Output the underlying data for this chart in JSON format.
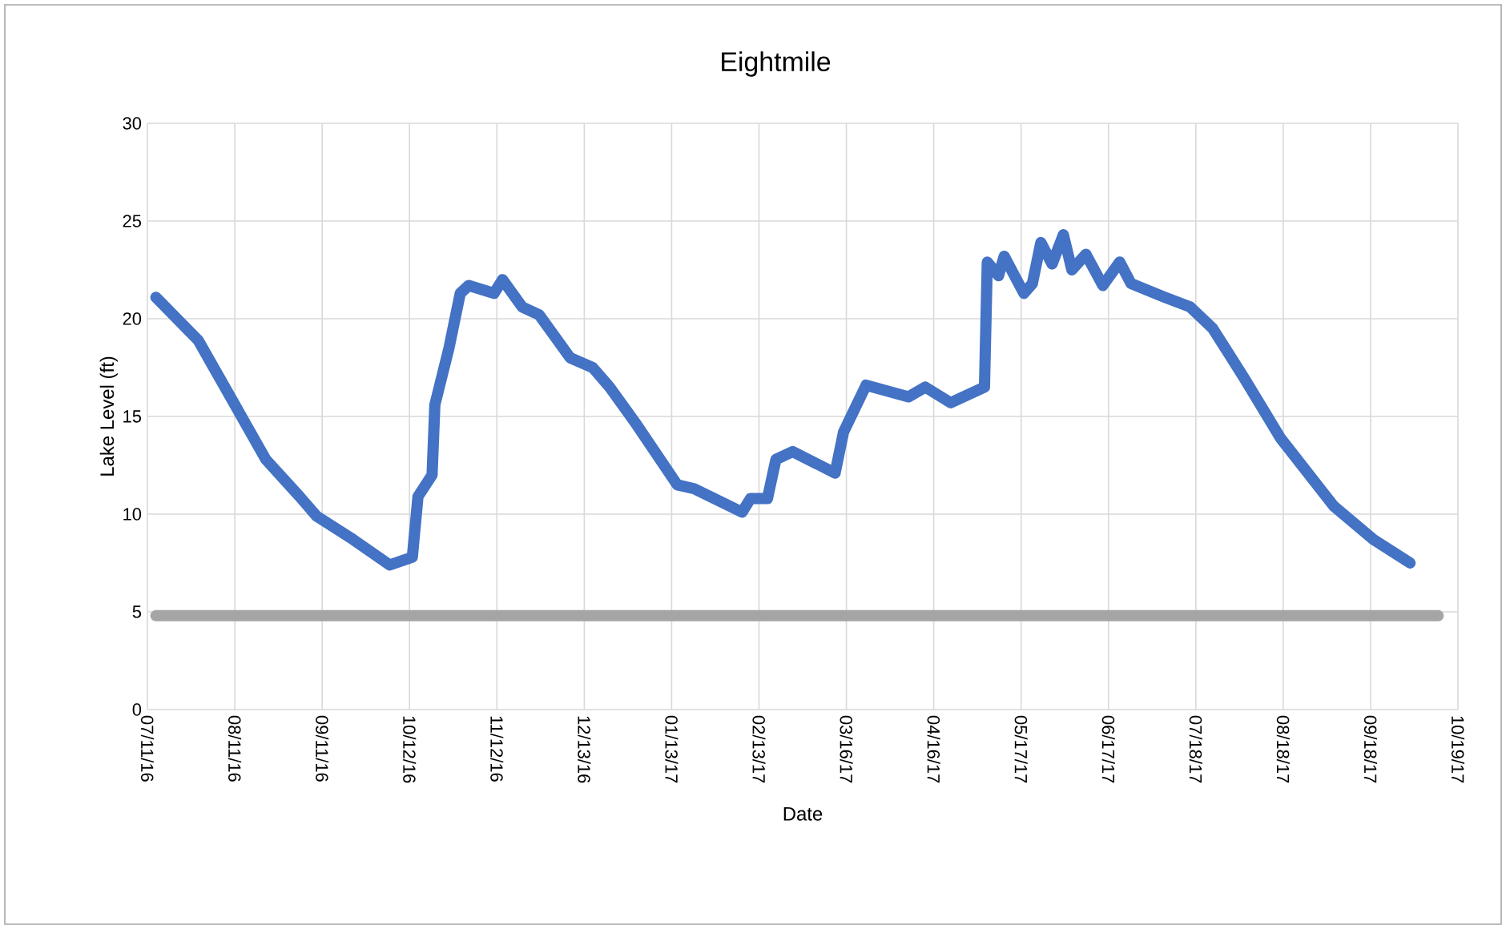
{
  "chart_data": {
    "type": "line",
    "title": "Eightmile",
    "xlabel": "Date",
    "ylabel": "Lake Level (ft)",
    "xlim": [
      "2016-07-11",
      "2017-10-19"
    ],
    "xticks": [
      {
        "value": "2016-07-11",
        "label": "07/11/16"
      },
      {
        "value": "2016-08-11",
        "label": "08/11/16"
      },
      {
        "value": "2016-09-11",
        "label": "09/11/16"
      },
      {
        "value": "2016-10-12",
        "label": "10/12/16"
      },
      {
        "value": "2016-11-12",
        "label": "11/12/16"
      },
      {
        "value": "2016-12-13",
        "label": "12/13/16"
      },
      {
        "value": "2017-01-13",
        "label": "01/13/17"
      },
      {
        "value": "2017-02-13",
        "label": "02/13/17"
      },
      {
        "value": "2017-03-16",
        "label": "03/16/17"
      },
      {
        "value": "2017-04-16",
        "label": "04/16/17"
      },
      {
        "value": "2017-05-17",
        "label": "05/17/17"
      },
      {
        "value": "2017-06-17",
        "label": "06/17/17"
      },
      {
        "value": "2017-07-18",
        "label": "07/18/17"
      },
      {
        "value": "2017-08-18",
        "label": "08/18/17"
      },
      {
        "value": "2017-09-18",
        "label": "09/18/17"
      },
      {
        "value": "2017-10-19",
        "label": "10/19/17"
      }
    ],
    "ylim": [
      0,
      30
    ],
    "yticks": [
      0,
      5,
      10,
      15,
      20,
      25,
      30
    ],
    "grid": true,
    "series": [
      {
        "color": "#4472c4",
        "x": [
          "2016-07-14",
          "2016-07-29",
          "2016-08-11",
          "2016-08-22",
          "2016-09-03",
          "2016-09-09",
          "2016-09-22",
          "2016-10-05",
          "2016-10-13",
          "2016-10-15",
          "2016-10-20",
          "2016-10-21",
          "2016-10-26",
          "2016-10-30",
          "2016-11-02",
          "2016-11-11",
          "2016-11-14",
          "2016-11-21",
          "2016-11-27",
          "2016-12-08",
          "2016-12-16",
          "2016-12-22",
          "2016-12-31",
          "2017-01-15",
          "2017-01-21",
          "2017-02-07",
          "2017-02-10",
          "2017-02-16",
          "2017-02-19",
          "2017-02-25",
          "2017-03-12",
          "2017-03-15",
          "2017-03-23",
          "2017-04-07",
          "2017-04-13",
          "2017-04-22",
          "2017-05-04",
          "2017-05-05",
          "2017-05-09",
          "2017-05-11",
          "2017-05-18",
          "2017-05-21",
          "2017-05-24",
          "2017-05-28",
          "2017-06-01",
          "2017-06-04",
          "2017-06-09",
          "2017-06-15",
          "2017-06-21",
          "2017-06-25",
          "2017-07-07",
          "2017-07-16",
          "2017-07-24",
          "2017-08-04",
          "2017-08-17",
          "2017-09-05",
          "2017-09-19",
          "2017-10-02"
        ],
        "values": [
          21.1,
          18.9,
          15.6,
          12.8,
          10.9,
          9.9,
          8.7,
          7.4,
          7.8,
          10.9,
          12.0,
          15.6,
          18.5,
          21.3,
          21.7,
          21.3,
          22.0,
          20.6,
          20.2,
          18.0,
          17.5,
          16.5,
          14.7,
          11.5,
          11.3,
          10.1,
          10.8,
          10.8,
          12.8,
          13.2,
          12.1,
          14.2,
          16.6,
          16.0,
          16.5,
          15.7,
          16.5,
          22.9,
          22.2,
          23.2,
          21.3,
          21.8,
          23.9,
          22.8,
          24.3,
          22.5,
          23.3,
          21.7,
          22.9,
          21.8,
          21.1,
          20.6,
          19.5,
          17.0,
          13.9,
          10.4,
          8.7,
          7.5
        ]
      },
      {
        "color": "#a5a5a5",
        "x": [
          "2016-07-14",
          "2017-10-12"
        ],
        "values": [
          4.8,
          4.8
        ]
      }
    ]
  }
}
